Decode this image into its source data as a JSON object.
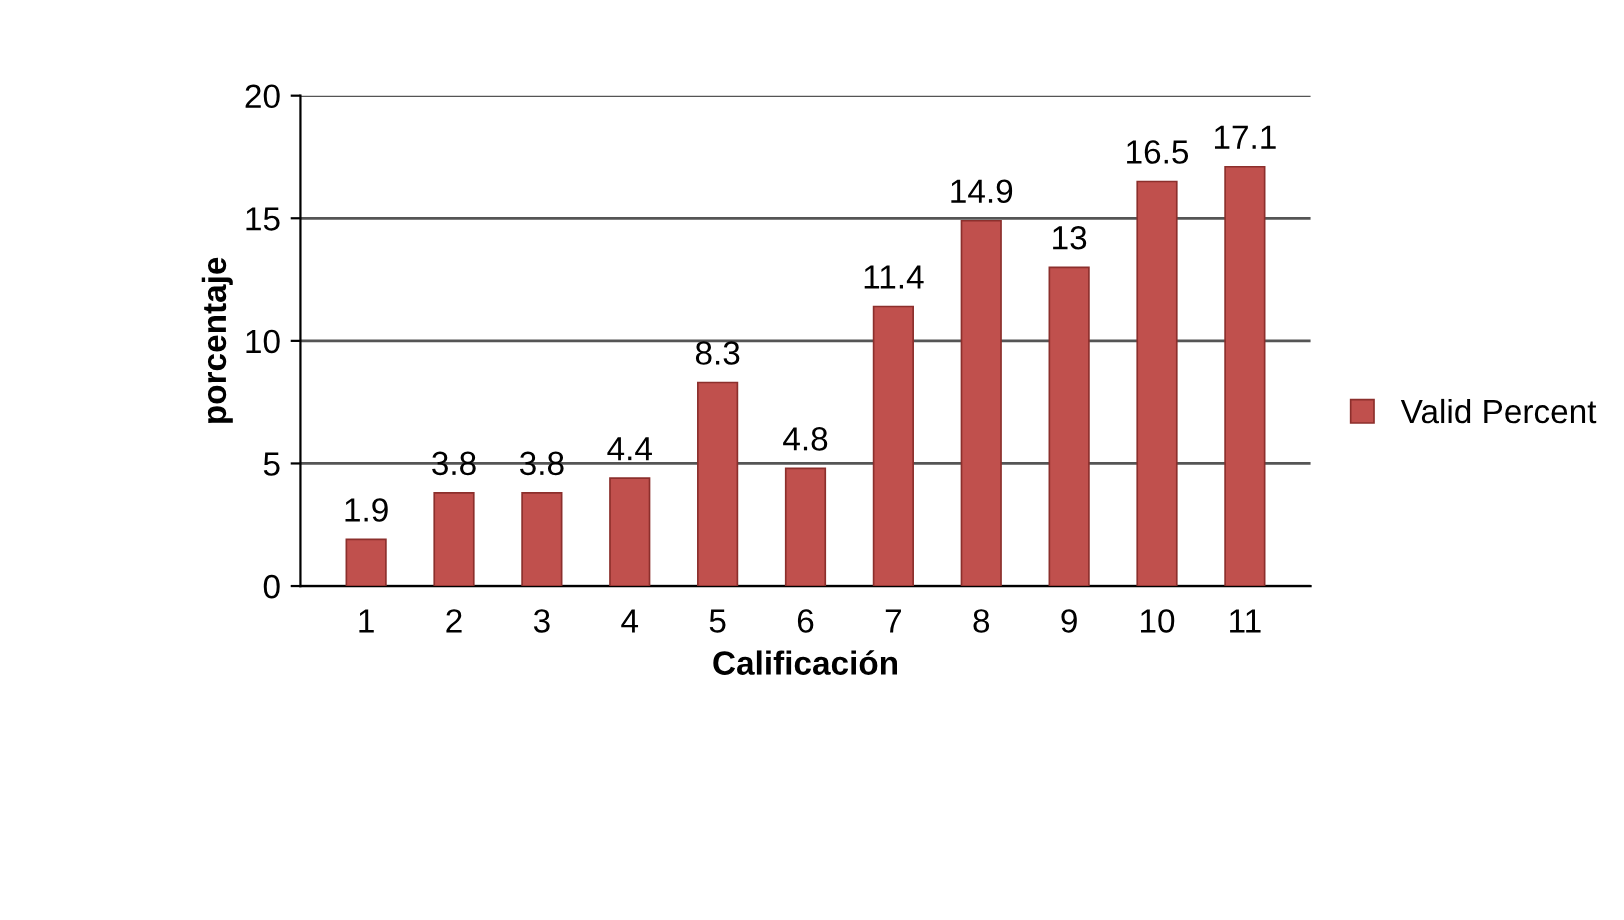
{
  "chart_data": {
    "type": "bar",
    "xlabel": "Calificación",
    "ylabel": "porcentaje",
    "categories": [
      "1",
      "2",
      "3",
      "4",
      "5",
      "6",
      "7",
      "8",
      "9",
      "10",
      "11"
    ],
    "series": [
      {
        "name": "Valid Percent",
        "color": "#c0504d",
        "values": [
          1.9,
          3.8,
          3.8,
          4.4,
          8.3,
          4.8,
          11.4,
          14.9,
          13,
          16.5,
          17.1
        ]
      }
    ],
    "ylim": [
      0,
      20
    ],
    "yticks": [
      0,
      5,
      10,
      15,
      20
    ],
    "grid": "y",
    "legend": "right",
    "data_labels": true
  }
}
